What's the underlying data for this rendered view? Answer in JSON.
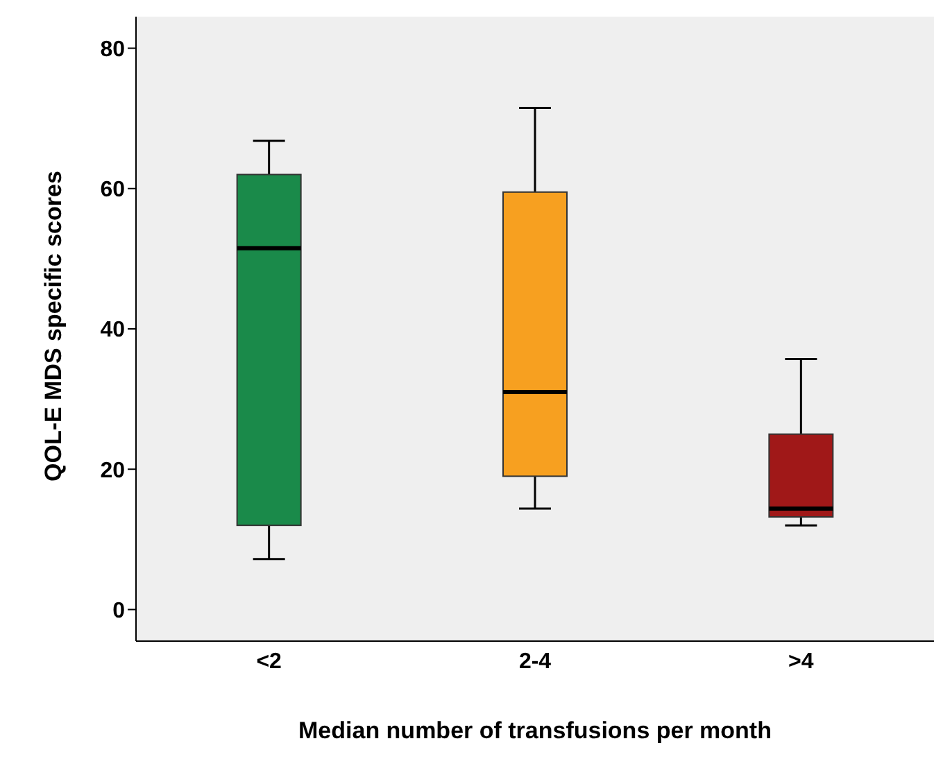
{
  "chart_data": {
    "type": "box",
    "xlabel": "Median number of transfusions per month",
    "ylabel": "QOL-E MDS specific scores",
    "categories": [
      "<2",
      "2-4",
      ">4"
    ],
    "colors": [
      "#1a8a4a",
      "#f7a020",
      "#a01818"
    ],
    "boxes": [
      {
        "low": 7.2,
        "q1": 12,
        "median": 51.5,
        "q3": 62,
        "high": 66.8
      },
      {
        "low": 14.4,
        "q1": 19,
        "median": 31,
        "q3": 59.5,
        "high": 71.5
      },
      {
        "low": 12,
        "q1": 13.2,
        "median": 14.4,
        "q3": 25,
        "high": 35.7
      }
    ],
    "ylim": [
      -4.5,
      84.5
    ],
    "yticks": [
      0,
      20,
      40,
      60,
      80
    ],
    "grid": false
  }
}
